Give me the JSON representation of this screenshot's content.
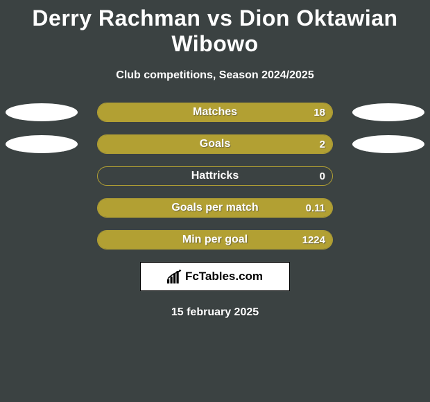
{
  "header": {
    "title": "Derry Rachman vs Dion Oktawian Wibowo",
    "subtitle": "Club competitions, Season 2024/2025"
  },
  "stats": [
    {
      "label": "Matches",
      "value": "18",
      "fill_pct": 100,
      "show_left_ellipse": true,
      "show_right_ellipse": true
    },
    {
      "label": "Goals",
      "value": "2",
      "fill_pct": 100,
      "show_left_ellipse": true,
      "show_right_ellipse": true
    },
    {
      "label": "Hattricks",
      "value": "0",
      "fill_pct": 0,
      "show_left_ellipse": false,
      "show_right_ellipse": false
    },
    {
      "label": "Goals per match",
      "value": "0.11",
      "fill_pct": 100,
      "show_left_ellipse": false,
      "show_right_ellipse": false
    },
    {
      "label": "Min per goal",
      "value": "1224",
      "fill_pct": 100,
      "show_left_ellipse": false,
      "show_right_ellipse": false
    }
  ],
  "styling": {
    "background_color": "#3b4242",
    "pill_border_color": "#b2a033",
    "pill_fill_color": "#b2a033",
    "ellipse_color": "#ffffff",
    "text_color": "#ffffff",
    "title_fontsize": 32,
    "subtitle_fontsize": 16,
    "stat_label_fontsize": 16,
    "stat_value_fontsize": 15,
    "pill_width": 340,
    "pill_height": 28,
    "ellipse_width": 104,
    "ellipse_height": 26,
    "row_gap": 18
  },
  "branding": {
    "logo_text": "FcTables.com"
  },
  "footer": {
    "date": "15 february 2025"
  }
}
